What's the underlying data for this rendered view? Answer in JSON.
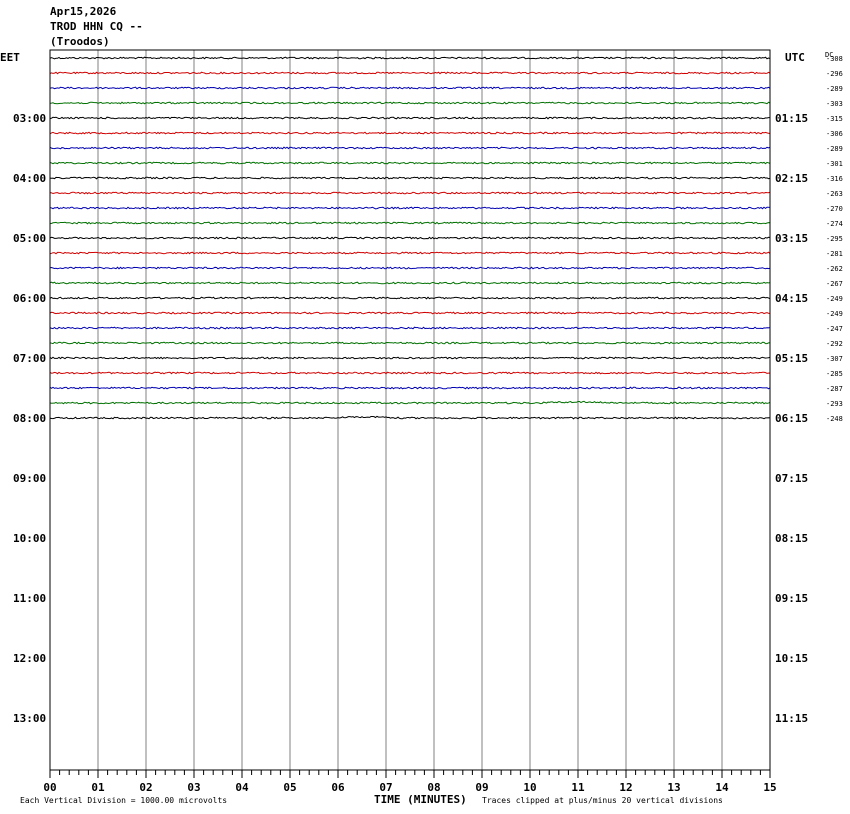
{
  "header": {
    "date": "Apr15,2026",
    "station": "TROD HHN CQ --",
    "location": "(Troodos)"
  },
  "footer": {
    "scale_note": "Each Vertical Division = 1000.00 microvolts",
    "xlabel": "TIME (MINUTES)",
    "clip_note": "Traces clipped at plus/minus 20 vertical divisions"
  },
  "colors": {
    "trace_cycle": [
      "#000000",
      "#d00000",
      "#0000b0",
      "#007000"
    ],
    "grid": "#808080",
    "frame": "#000000"
  },
  "chart_data": {
    "type": "line",
    "title": "",
    "left_axis_label": "EET",
    "right_axis_label": "UTC",
    "dc_label": "DC",
    "x_ticks": [
      "00",
      "01",
      "02",
      "03",
      "04",
      "05",
      "06",
      "07",
      "08",
      "09",
      "10",
      "11",
      "12",
      "13",
      "14",
      "15"
    ],
    "xlim": [
      0,
      15
    ],
    "xlabel": "TIME (MINUTES)",
    "left_hour_labels": [
      "03:00",
      "04:00",
      "05:00",
      "06:00",
      "07:00",
      "08:00",
      "09:00",
      "10:00",
      "11:00",
      "12:00",
      "13:00"
    ],
    "right_hour_labels": [
      "01:15",
      "02:15",
      "03:15",
      "04:15",
      "05:15",
      "06:15",
      "07:15",
      "08:15",
      "09:15",
      "10:15",
      "11:15"
    ],
    "rows_per_hour": 4,
    "total_rows": 48,
    "first_row_time_eet": "02:00",
    "trace_offsets_dc": [
      -308,
      -296,
      -289,
      -303,
      -315,
      -306,
      -289,
      -301,
      -316,
      -263,
      -270,
      -274,
      -295,
      -281,
      -262,
      -267,
      -249,
      -249,
      -247,
      -292,
      -307,
      -285,
      -287,
      -293,
      -248
    ],
    "grid": true
  }
}
